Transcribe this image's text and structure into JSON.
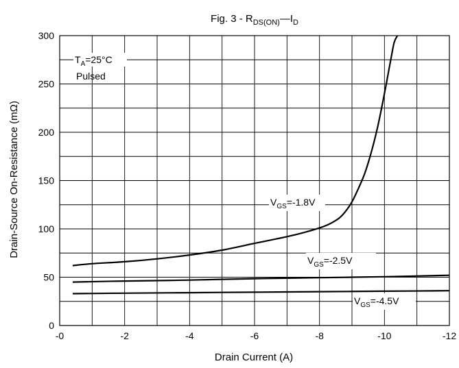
{
  "chart_data": {
    "type": "line",
    "title": {
      "main": "Fig. 3 - R",
      "sub1": "DS(ON)",
      "dash": "—I",
      "sub2": "D"
    },
    "xlabel": "Drain Current (A)",
    "ylabel": "Drain-Source On-Resistance (mΩ)",
    "xlim": [
      0,
      -12
    ],
    "ylim": [
      0,
      300
    ],
    "xticks": [
      "-0",
      "-2",
      "-4",
      "-6",
      "-8",
      "-10",
      "-12"
    ],
    "yticks": [
      "0",
      "50",
      "100",
      "150",
      "200",
      "250",
      "300"
    ],
    "grid": true,
    "conditions": {
      "ta_main": "T",
      "ta_sub": "A",
      "ta_rest": "=25°C",
      "mode": "Pulsed"
    },
    "series": [
      {
        "name": {
          "pre": "V",
          "sub": "GS",
          "post": "=-1.8V"
        },
        "x": [
          -0.4,
          -1.0,
          -2.0,
          -3.0,
          -4.0,
          -5.0,
          -6.0,
          -7.0,
          -7.5,
          -8.0,
          -8.3,
          -8.6,
          -8.8,
          -9.0,
          -9.2,
          -9.4,
          -9.6,
          -9.8,
          -10.0,
          -10.1,
          -10.2,
          -10.3,
          -10.4
        ],
        "y": [
          62,
          64,
          66,
          69,
          73,
          78,
          85,
          92,
          96,
          101,
          105,
          111,
          118,
          128,
          142,
          158,
          180,
          207,
          240,
          258,
          276,
          293,
          300
        ]
      },
      {
        "name": {
          "pre": "V",
          "sub": "GS",
          "post": "=-2.5V"
        },
        "x": [
          -0.4,
          -2,
          -4,
          -6,
          -8,
          -10,
          -12
        ],
        "y": [
          45,
          46,
          47,
          48.5,
          49.5,
          50.5,
          52
        ]
      },
      {
        "name": {
          "pre": "V",
          "sub": "GS",
          "post": "=-4.5V"
        },
        "x": [
          -0.4,
          -2,
          -4,
          -6,
          -8,
          -10,
          -12
        ],
        "y": [
          33,
          33.5,
          34,
          34.5,
          35,
          35.5,
          36
        ]
      }
    ]
  }
}
